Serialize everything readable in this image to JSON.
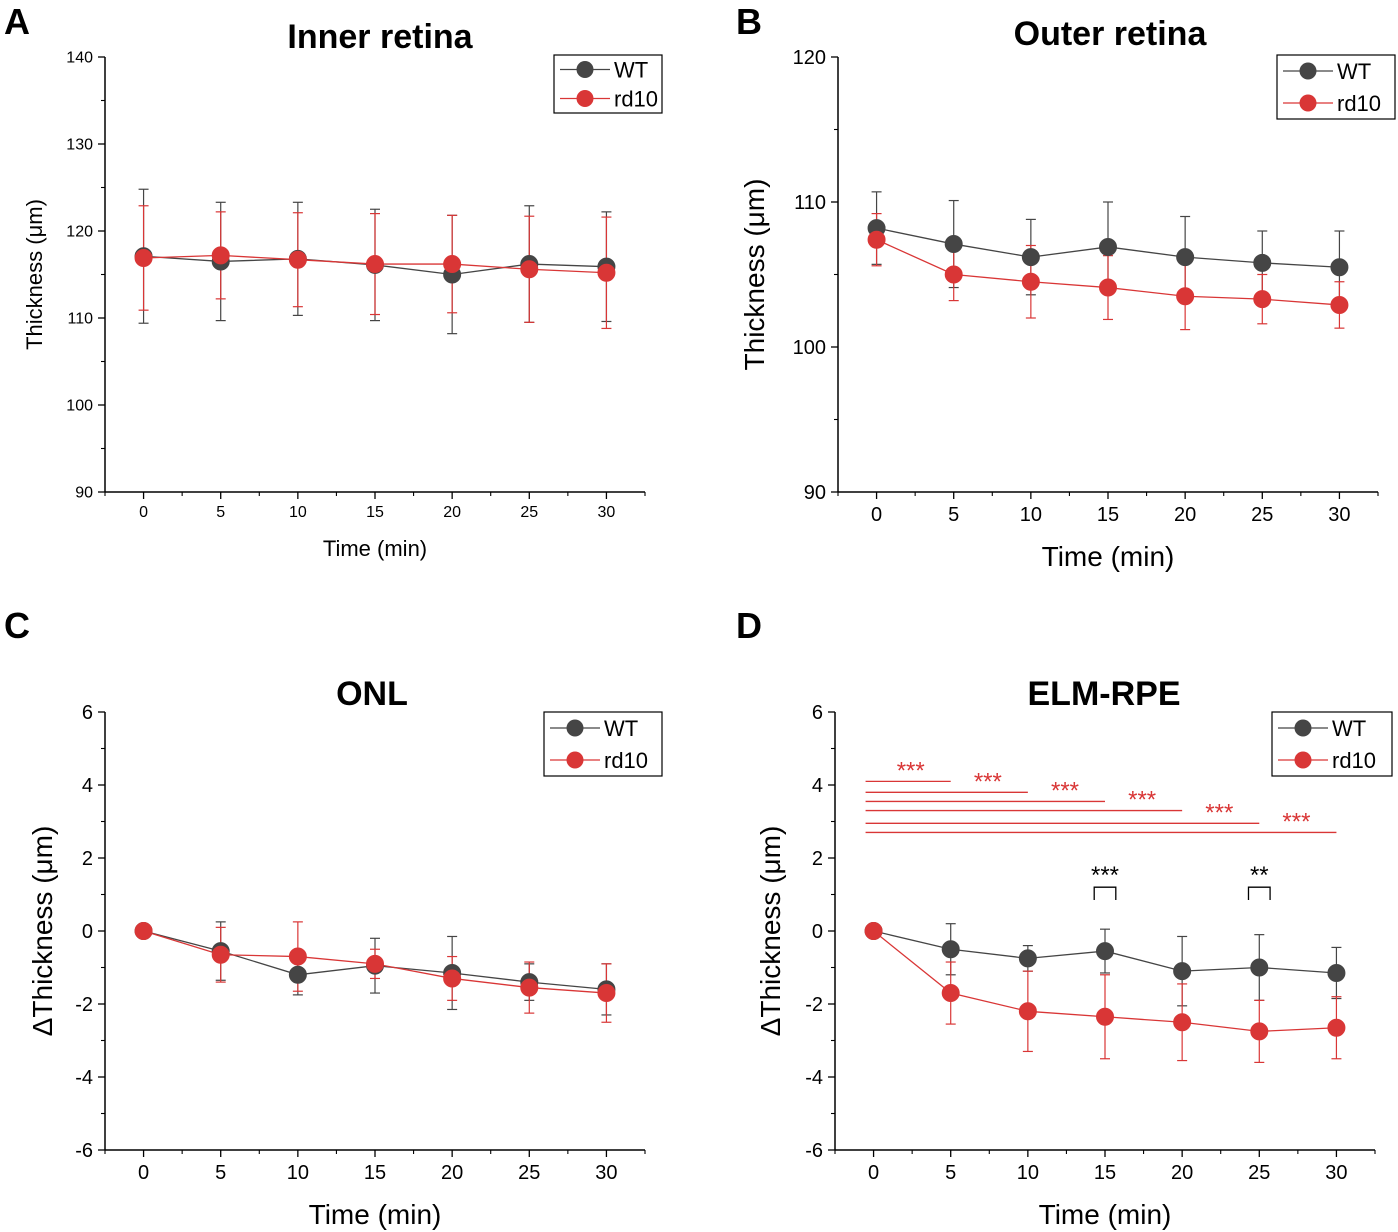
{
  "colors": {
    "wt": "#454545",
    "rd10": "#d93636",
    "axis": "#000000"
  },
  "chart_data": [
    {
      "type": "line",
      "panel": "A",
      "title": "Inner retina",
      "xlabel": "Time (min)",
      "ylabel": "Thickness (μm)",
      "x": [
        0,
        5,
        10,
        15,
        20,
        25,
        30
      ],
      "xticks": [
        "0",
        "5",
        "10",
        "15",
        "20",
        "25",
        "30"
      ],
      "yticks": [
        "90",
        "100",
        "110",
        "120",
        "130",
        "140"
      ],
      "ylim": [
        90,
        140
      ],
      "legend": "top-right",
      "grid": false,
      "series": [
        {
          "name": "WT",
          "values": [
            117.1,
            116.5,
            116.8,
            116.1,
            115.0,
            116.2,
            115.9
          ],
          "err": [
            7.7,
            6.8,
            6.5,
            6.4,
            6.8,
            6.7,
            6.3
          ]
        },
        {
          "name": "rd10",
          "values": [
            116.9,
            117.2,
            116.7,
            116.2,
            116.2,
            115.6,
            115.2
          ],
          "err": [
            6.0,
            5.0,
            5.4,
            5.8,
            5.6,
            6.1,
            6.4
          ]
        }
      ],
      "annotations": []
    },
    {
      "type": "line",
      "panel": "B",
      "title": "Outer retina",
      "xlabel": "Time (min)",
      "ylabel": "Thickness (μm)",
      "x": [
        0,
        5,
        10,
        15,
        20,
        25,
        30
      ],
      "xticks": [
        "0",
        "5",
        "10",
        "15",
        "20",
        "25",
        "30"
      ],
      "yticks": [
        "90",
        "100",
        "110",
        "120"
      ],
      "ylim": [
        90,
        120
      ],
      "legend": "top-right",
      "grid": false,
      "series": [
        {
          "name": "WT",
          "values": [
            108.2,
            107.1,
            106.2,
            106.9,
            106.2,
            105.8,
            105.5
          ],
          "err": [
            2.5,
            3.0,
            2.6,
            3.1,
            2.8,
            2.2,
            2.5
          ]
        },
        {
          "name": "rd10",
          "values": [
            107.4,
            105.0,
            104.5,
            104.1,
            103.5,
            103.3,
            102.9
          ],
          "err": [
            1.8,
            1.8,
            2.5,
            2.2,
            2.3,
            1.7,
            1.6
          ]
        }
      ],
      "annotations": []
    },
    {
      "type": "line",
      "panel": "C",
      "title": "ONL",
      "xlabel": "Time (min)",
      "ylabel": "ΔThickness (μm)",
      "x": [
        0,
        5,
        10,
        15,
        20,
        25,
        30
      ],
      "xticks": [
        "0",
        "5",
        "10",
        "15",
        "20",
        "25",
        "30"
      ],
      "yticks": [
        "-6",
        "-4",
        "-2",
        "0",
        "2",
        "4",
        "6"
      ],
      "ylim": [
        -6,
        6
      ],
      "legend": "top-right",
      "grid": false,
      "series": [
        {
          "name": "WT",
          "values": [
            0,
            -0.55,
            -1.2,
            -0.95,
            -1.15,
            -1.4,
            -1.6
          ],
          "err": [
            0,
            0.8,
            0.55,
            0.75,
            1.0,
            0.5,
            0.7
          ]
        },
        {
          "name": "rd10",
          "values": [
            0,
            -0.65,
            -0.7,
            -0.9,
            -1.3,
            -1.55,
            -1.7
          ],
          "err": [
            0,
            0.75,
            0.95,
            0.4,
            0.6,
            0.7,
            0.8
          ]
        }
      ],
      "annotations": []
    },
    {
      "type": "line",
      "panel": "D",
      "title": "ELM-RPE",
      "xlabel": "Time (min)",
      "ylabel": "ΔThickness (μm)",
      "x": [
        0,
        5,
        10,
        15,
        20,
        25,
        30
      ],
      "xticks": [
        "0",
        "5",
        "10",
        "15",
        "20",
        "25",
        "30"
      ],
      "yticks": [
        "-6",
        "-4",
        "-2",
        "0",
        "2",
        "4",
        "6"
      ],
      "ylim": [
        -6,
        6
      ],
      "legend": "top-right",
      "grid": false,
      "series": [
        {
          "name": "WT",
          "values": [
            0,
            -0.5,
            -0.75,
            -0.55,
            -1.1,
            -1.0,
            -1.15
          ],
          "err": [
            0,
            0.7,
            0.35,
            0.6,
            0.95,
            0.9,
            0.7
          ]
        },
        {
          "name": "rd10",
          "values": [
            0,
            -1.7,
            -2.2,
            -2.35,
            -2.5,
            -2.75,
            -2.65
          ],
          "err": [
            0,
            0.85,
            1.1,
            1.15,
            1.05,
            0.85,
            0.85
          ]
        }
      ],
      "annotations": [
        {
          "type": "line",
          "color": "rd10",
          "x1": 0,
          "x2": 5,
          "y": 4.1,
          "label": "***"
        },
        {
          "type": "line",
          "color": "rd10",
          "x1": 0,
          "x2": 10,
          "y": 3.8,
          "label": "***"
        },
        {
          "type": "line",
          "color": "rd10",
          "x1": 0,
          "x2": 15,
          "y": 3.55,
          "label": "***"
        },
        {
          "type": "line",
          "color": "rd10",
          "x1": 0,
          "x2": 20,
          "y": 3.3,
          "label": "***"
        },
        {
          "type": "line",
          "color": "rd10",
          "x1": 0,
          "x2": 25,
          "y": 2.95,
          "label": "***"
        },
        {
          "type": "line",
          "color": "rd10",
          "x1": 0,
          "x2": 30,
          "y": 2.7,
          "label": "***"
        },
        {
          "type": "bracket",
          "color": "axis",
          "x1": 14.3,
          "x2": 15.7,
          "y": 1.2,
          "label": "***"
        },
        {
          "type": "bracket",
          "color": "axis",
          "x1": 24.3,
          "x2": 25.7,
          "y": 1.2,
          "label": "**"
        }
      ]
    }
  ]
}
